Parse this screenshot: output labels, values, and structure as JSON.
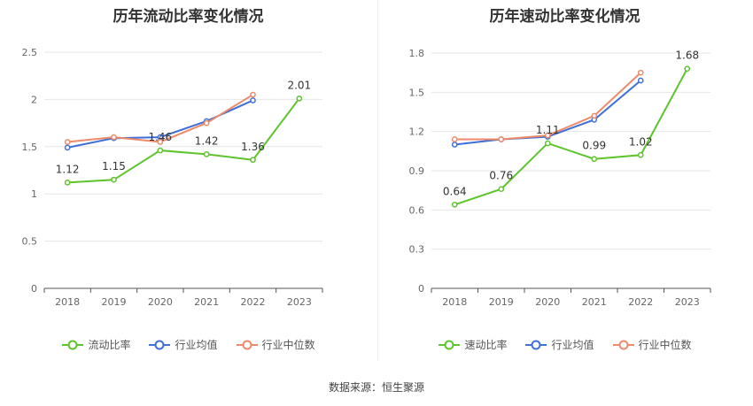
{
  "chart_data": [
    {
      "type": "line",
      "title": "历年流动比率变化情况",
      "categories": [
        "2018",
        "2019",
        "2020",
        "2021",
        "2022",
        "2023"
      ],
      "ylim": [
        0,
        2.5
      ],
      "yticks": [
        "0",
        "0.5",
        "1",
        "1.5",
        "2",
        "2.5"
      ],
      "grid": true,
      "legend_position": "bottom",
      "series": [
        {
          "name": "流动比率",
          "color": "#5dc42c",
          "values": [
            1.12,
            1.15,
            1.46,
            1.42,
            1.36,
            2.01
          ],
          "labels": [
            "1.12",
            "1.15",
            "1.46",
            "1.42",
            "1.36",
            "2.01"
          ]
        },
        {
          "name": "行业均值",
          "color": "#3e6fd8",
          "values": [
            1.49,
            1.59,
            1.6,
            1.77,
            1.99,
            null
          ]
        },
        {
          "name": "行业中位数",
          "color": "#ee8a6a",
          "values": [
            1.55,
            1.6,
            1.55,
            1.75,
            2.05,
            null
          ]
        }
      ]
    },
    {
      "type": "line",
      "title": "历年速动比率变化情况",
      "categories": [
        "2018",
        "2019",
        "2020",
        "2021",
        "2022",
        "2023"
      ],
      "ylim": [
        0,
        1.8
      ],
      "yticks": [
        "0",
        "0.3",
        "0.6",
        "0.9",
        "1.2",
        "1.5",
        "1.8"
      ],
      "grid": true,
      "legend_position": "bottom",
      "series": [
        {
          "name": "速动比率",
          "color": "#5dc42c",
          "values": [
            0.64,
            0.76,
            1.11,
            0.99,
            1.02,
            1.68
          ],
          "labels": [
            "0.64",
            "0.76",
            "1.11",
            "0.99",
            "1.02",
            "1.68"
          ]
        },
        {
          "name": "行业均值",
          "color": "#3e6fd8",
          "values": [
            1.1,
            1.14,
            1.16,
            1.29,
            1.59,
            null
          ]
        },
        {
          "name": "行业中位数",
          "color": "#ee8a6a",
          "values": [
            1.14,
            1.14,
            1.17,
            1.32,
            1.65,
            null
          ]
        }
      ]
    }
  ],
  "footer": {
    "source": "数据来源：恒生聚源"
  }
}
